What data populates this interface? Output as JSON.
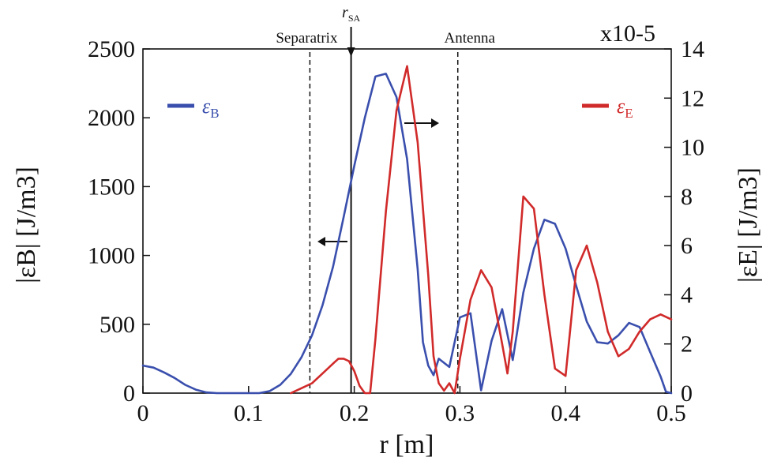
{
  "chart_data": {
    "type": "line",
    "xlabel": "r [m]",
    "ylabel_left": "|εB| [J/m3]",
    "ylabel_right": "|εE| [J/m3]",
    "right_exponent": "x10-5",
    "xlim": [
      0,
      0.5
    ],
    "ylim_left": [
      0,
      2500
    ],
    "ylim_right": [
      0,
      14
    ],
    "x_ticks": [
      "0",
      "0.1",
      "0.2",
      "0.3",
      "0.4",
      "0.5"
    ],
    "y_left_ticks": [
      "0",
      "500",
      "1000",
      "1500",
      "2000",
      "2500"
    ],
    "y_right_ticks": [
      "0",
      "2",
      "4",
      "6",
      "8",
      "10",
      "12",
      "14"
    ],
    "grid": false,
    "annotations": {
      "separatrix": {
        "label": "Separatrix",
        "x": 0.158
      },
      "rsa": {
        "label": "r",
        "sub": "SA",
        "x": 0.197
      },
      "antenna": {
        "label": "Antenna",
        "x": 0.298
      }
    },
    "series": [
      {
        "name": "εB",
        "axis": "left",
        "color": "#3a4fad",
        "legend_pos": "top-left",
        "x": [
          0,
          0.01,
          0.02,
          0.03,
          0.04,
          0.05,
          0.06,
          0.07,
          0.08,
          0.09,
          0.1,
          0.11,
          0.12,
          0.13,
          0.14,
          0.15,
          0.16,
          0.17,
          0.18,
          0.19,
          0.2,
          0.21,
          0.22,
          0.23,
          0.24,
          0.25,
          0.26,
          0.265,
          0.27,
          0.275,
          0.28,
          0.29,
          0.3,
          0.31,
          0.32,
          0.33,
          0.34,
          0.35,
          0.36,
          0.37,
          0.38,
          0.39,
          0.4,
          0.41,
          0.42,
          0.43,
          0.44,
          0.45,
          0.46,
          0.47,
          0.48,
          0.49,
          0.495,
          0.5
        ],
        "values": [
          200,
          185,
          150,
          110,
          60,
          25,
          5,
          0,
          0,
          0,
          0,
          0,
          15,
          60,
          140,
          260,
          420,
          640,
          920,
          1280,
          1650,
          2000,
          2300,
          2320,
          2150,
          1700,
          900,
          370,
          200,
          130,
          250,
          190,
          550,
          580,
          20,
          380,
          610,
          240,
          730,
          1050,
          1260,
          1230,
          1050,
          780,
          520,
          370,
          360,
          420,
          510,
          480,
          300,
          120,
          10,
          0
        ]
      },
      {
        "name": "εE",
        "axis": "right",
        "color": "#d12a2a",
        "legend_pos": "top-right",
        "x": [
          0.14,
          0.15,
          0.16,
          0.17,
          0.18,
          0.185,
          0.19,
          0.195,
          0.2,
          0.205,
          0.21,
          0.215,
          0.22,
          0.23,
          0.24,
          0.25,
          0.26,
          0.27,
          0.275,
          0.28,
          0.285,
          0.29,
          0.295,
          0.3,
          0.31,
          0.32,
          0.33,
          0.34,
          0.345,
          0.35,
          0.36,
          0.37,
          0.38,
          0.39,
          0.4,
          0.41,
          0.42,
          0.43,
          0.44,
          0.45,
          0.46,
          0.47,
          0.48,
          0.49,
          0.5
        ],
        "values": [
          0,
          0.2,
          0.4,
          0.8,
          1.2,
          1.4,
          1.4,
          1.3,
          0.9,
          0.3,
          0,
          0,
          2.2,
          7.4,
          11.5,
          13.3,
          10.2,
          4.8,
          1.5,
          0.4,
          0.1,
          0.4,
          0,
          1.4,
          3.8,
          5.0,
          4.3,
          2.0,
          0.8,
          2.5,
          8.0,
          7.5,
          4.0,
          1.0,
          0.7,
          5.0,
          6.0,
          4.5,
          2.5,
          1.5,
          1.8,
          2.5,
          3.0,
          3.2,
          3.0
        ]
      }
    ]
  }
}
